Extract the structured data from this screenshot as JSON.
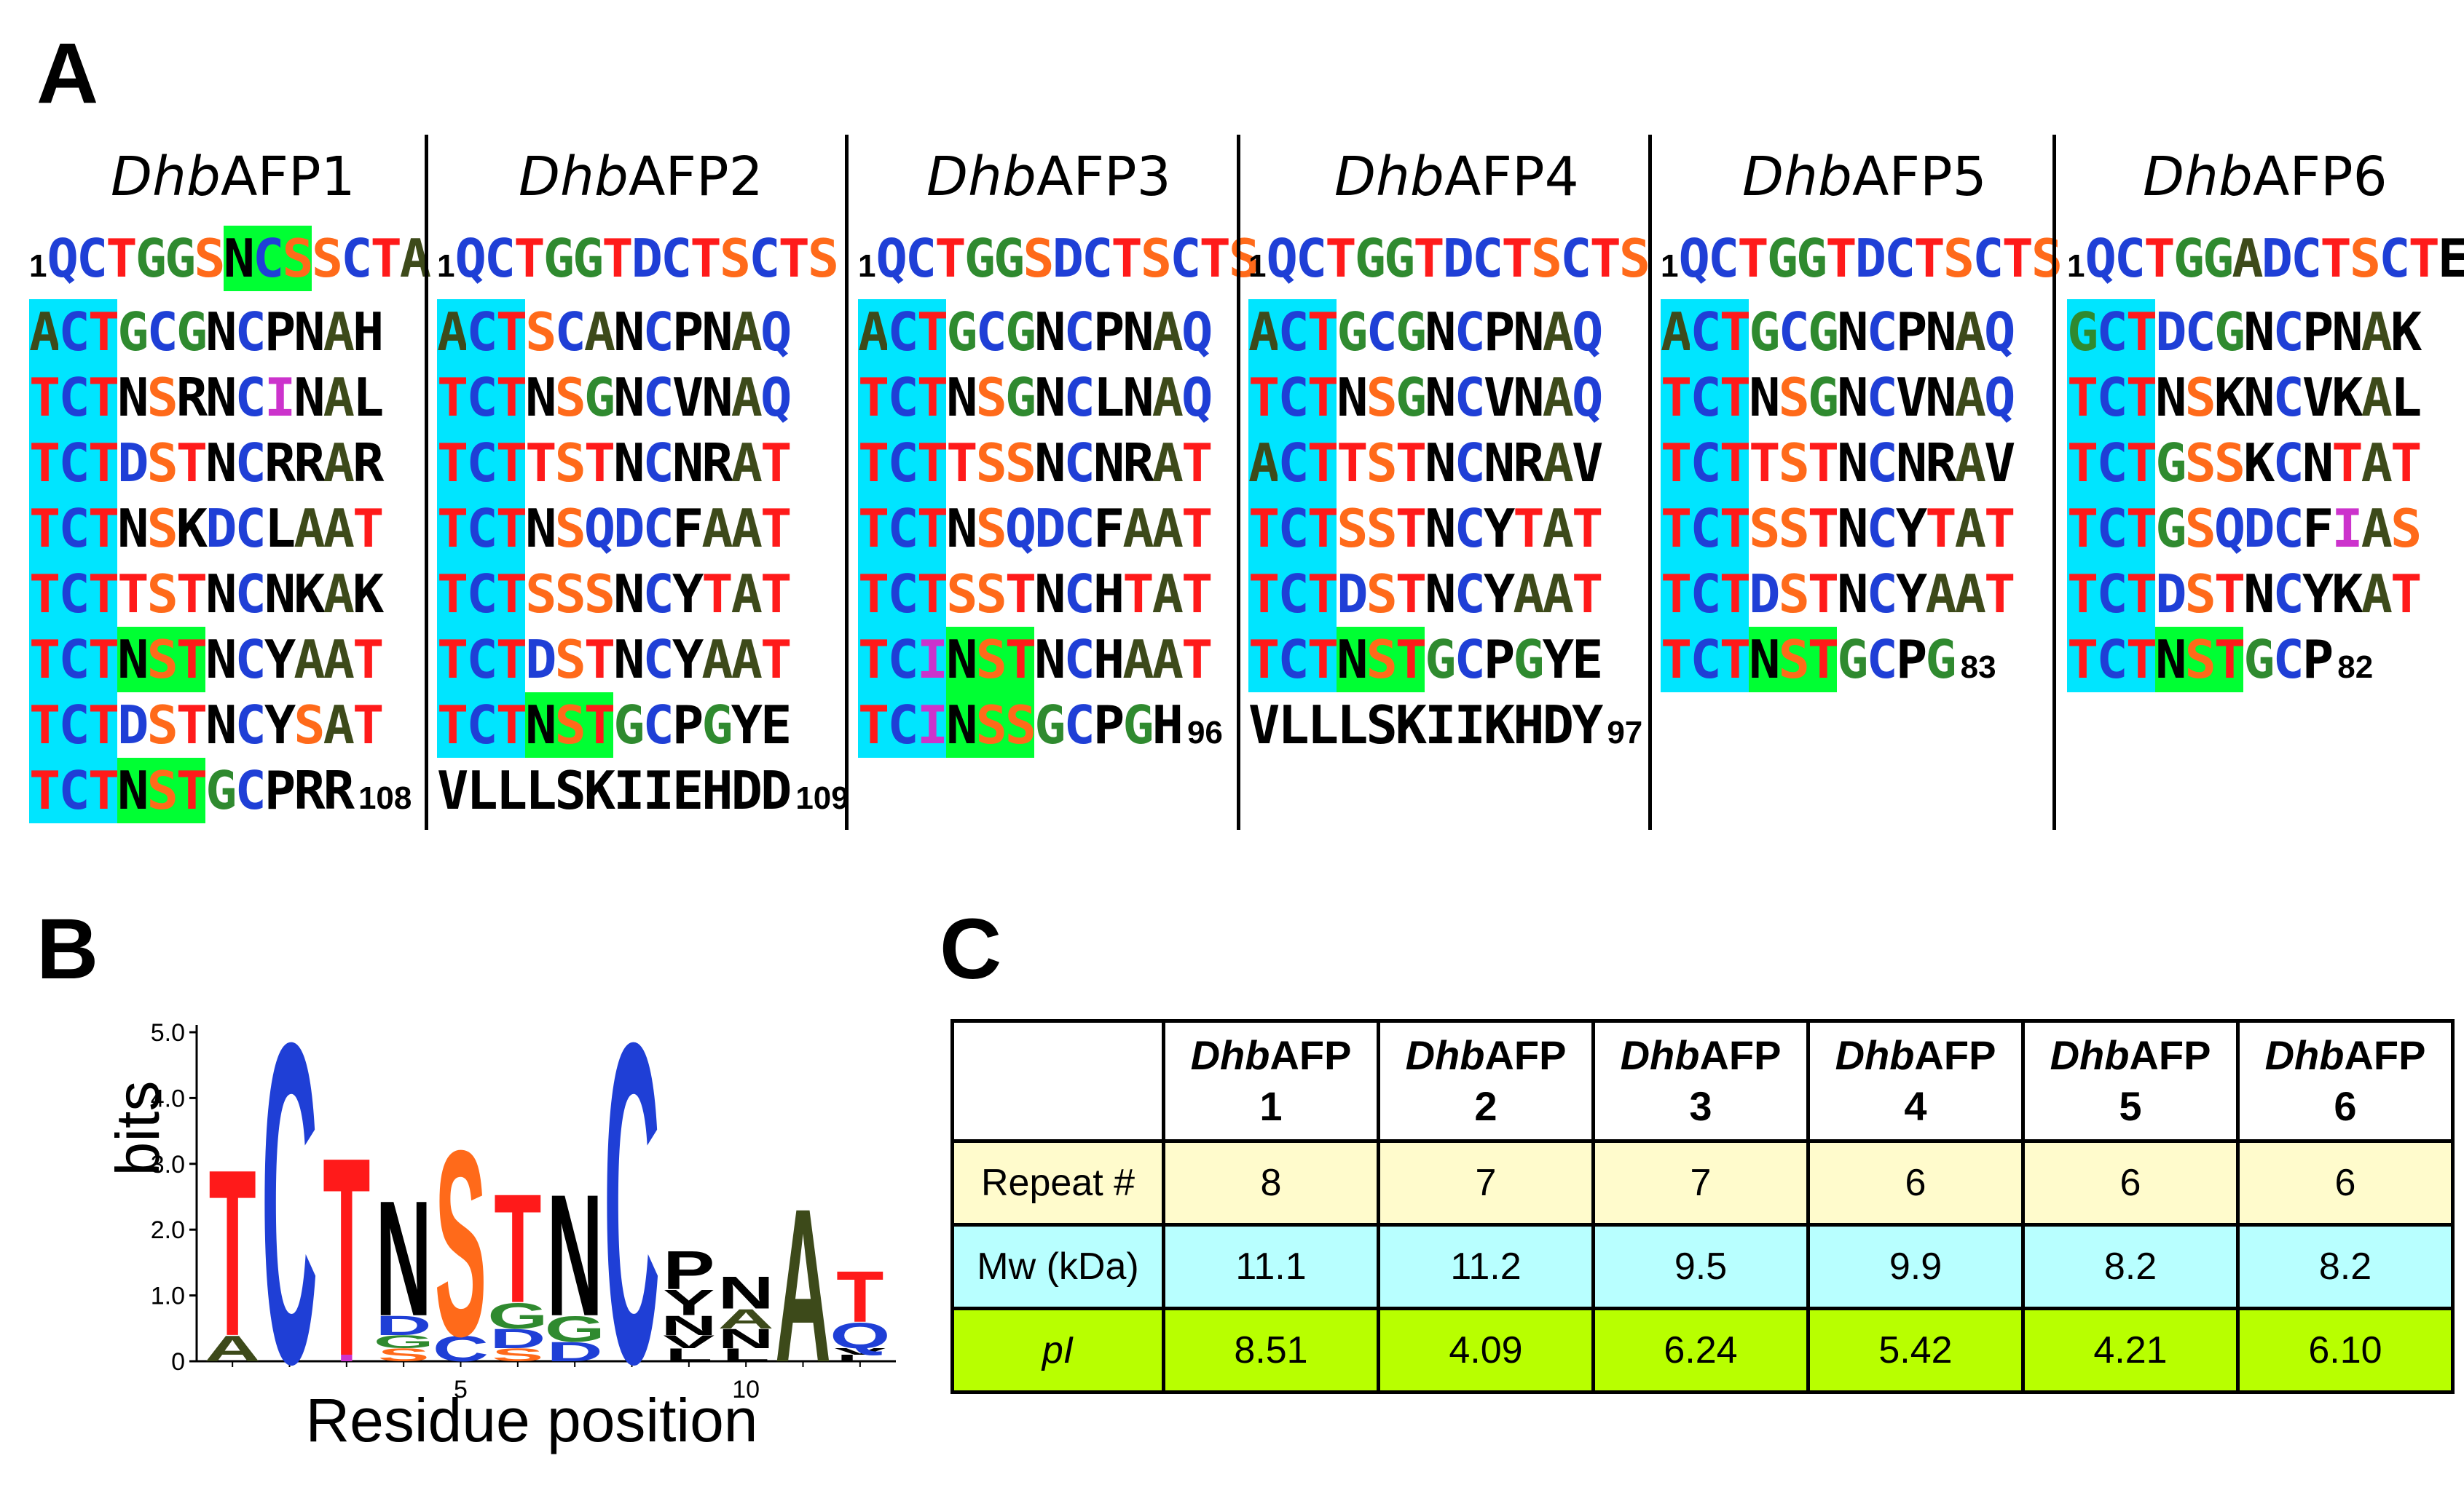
{
  "panels": {
    "a": "A",
    "b": "B",
    "c": "C"
  },
  "colors": {
    "T": "#ff1a1a",
    "C": "#1f3fd6",
    "N": "#000000",
    "S": "#ff6a1a",
    "G": "#2f8a2f",
    "D": "#1f3fd6",
    "A": "#3d4a1a",
    "Q": "#1f3fd6",
    "highlight_cyan": "#00e5ff",
    "highlight_green": "#00ff33",
    "I": "#cc33cc"
  },
  "sequences": [
    {
      "title_italic": "Dhb",
      "title_rest": "AFP1",
      "lines": [
        {
          "lead": "1",
          "text": "QCTGGSNCSSCTA"
        },
        {
          "text": "ACTGCGNCPNAH"
        },
        {
          "text": "TCTNSRNCINAL"
        },
        {
          "text": "TCTDSTNCRRAR"
        },
        {
          "text": "TCTNSKDCLAAT"
        },
        {
          "text": "TCTTSTNCNKAK"
        },
        {
          "text": "TCTNSTNCYAAT"
        },
        {
          "text": "TCTDSTNCYSAT"
        },
        {
          "text": "TCTNSTGCPRR",
          "end": "108"
        }
      ]
    },
    {
      "title_italic": "Dhb",
      "title_rest": "AFP2",
      "lines": [
        {
          "lead": "1",
          "text": "QCTGGTDCTSCTS"
        },
        {
          "text": "ACTSCANCPNAQ"
        },
        {
          "text": "TCTNSGNCVNAQ"
        },
        {
          "text": "TCTTSTNCNRAT"
        },
        {
          "text": "TCTNSQDCFAAT"
        },
        {
          "text": "TCTSSSNCYTAT"
        },
        {
          "text": "TCTDSTNCYAAT"
        },
        {
          "text": "TCTNSTGCPGYE"
        },
        {
          "text": "VLLLSKIIEHDD",
          "end": "109"
        }
      ]
    },
    {
      "title_italic": "Dhb",
      "title_rest": "AFP3",
      "lines": [
        {
          "lead": "1",
          "text": "QCTGGSDCTSCTS"
        },
        {
          "text": "ACTGCGNCPNAQ"
        },
        {
          "text": "TCTNSGNCLNAQ"
        },
        {
          "text": "TCTTSSNCNRAT"
        },
        {
          "text": "TCTNSQDCFAAT"
        },
        {
          "text": "TCTSSTNCHTAT"
        },
        {
          "text": "TCINSTNCHAAT"
        },
        {
          "text": "TCINSSGCPGH",
          "end": "96"
        }
      ]
    },
    {
      "title_italic": "Dhb",
      "title_rest": "AFP4",
      "lines": [
        {
          "lead": "1",
          "text": "QCTGGTDCTSCTS"
        },
        {
          "text": "ACTGCGNCPNAQ"
        },
        {
          "text": "TCTNSGNCVNAQ"
        },
        {
          "text": "ACTTSTNCNRAV"
        },
        {
          "text": "TCTSSTNCYTAT"
        },
        {
          "text": "TCTDSTNCYAAT"
        },
        {
          "text": "TCTNSTGCPGYE"
        },
        {
          "text": "VLLLSKIIKHDY",
          "end": "97"
        }
      ]
    },
    {
      "title_italic": "Dhb",
      "title_rest": "AFP5",
      "lines": [
        {
          "lead": "1",
          "text": "QCTGGTDCTSCTS"
        },
        {
          "text": "ACTGCGNCPNAQ"
        },
        {
          "text": "TCTNSGNCVNAQ"
        },
        {
          "text": "TCTTSTNCNRAV"
        },
        {
          "text": "TCTSSTNCYTAT"
        },
        {
          "text": "TCTDSTNCYAAT"
        },
        {
          "text": "TCTNSTGCPG",
          "end": "83"
        }
      ]
    },
    {
      "title_italic": "Dhb",
      "title_rest": "AFP6",
      "lines": [
        {
          "lead": "1",
          "text": "QCTGGADCTSCTE"
        },
        {
          "text": "GCTDCGNCPNAK"
        },
        {
          "text": "TCTNSKNCVKAL"
        },
        {
          "text": "TCTGSSKCNTAT"
        },
        {
          "text": "TCTGSQDCFIAS"
        },
        {
          "text": "TCTDSTNCYKAT"
        },
        {
          "text": "TCTNSTGCP",
          "end": "82"
        }
      ]
    }
  ],
  "logo": {
    "ylabel": "bits",
    "xlabel": "Residue position",
    "yticks": [
      "0",
      "1.0",
      "2.0",
      "3.0",
      "4.0",
      "5.0"
    ],
    "xticks": [
      "5",
      "10"
    ],
    "ymax": 5.0,
    "positions": [
      {
        "pos": 1,
        "letters": [
          {
            "l": "A",
            "h": 0.4
          },
          {
            "l": "T",
            "h": 2.6
          }
        ]
      },
      {
        "pos": 2,
        "letters": [
          {
            "l": "C",
            "h": 5.0
          }
        ]
      },
      {
        "pos": 3,
        "letters": [
          {
            "l": "I",
            "h": 0.1
          },
          {
            "l": "T",
            "h": 3.1
          }
        ]
      },
      {
        "pos": 4,
        "letters": [
          {
            "l": "S",
            "h": 0.2
          },
          {
            "l": "G",
            "h": 0.2
          },
          {
            "l": "D",
            "h": 0.3
          },
          {
            "l": "N",
            "h": 1.8
          }
        ]
      },
      {
        "pos": 5,
        "letters": [
          {
            "l": "C",
            "h": 0.4
          },
          {
            "l": "S",
            "h": 2.9
          }
        ]
      },
      {
        "pos": 6,
        "letters": [
          {
            "l": "S",
            "h": 0.2
          },
          {
            "l": "D",
            "h": 0.3
          },
          {
            "l": "G",
            "h": 0.4
          },
          {
            "l": "T",
            "h": 1.7
          }
        ]
      },
      {
        "pos": 7,
        "letters": [
          {
            "l": "D",
            "h": 0.3
          },
          {
            "l": "G",
            "h": 0.4
          },
          {
            "l": "N",
            "h": 1.9
          }
        ]
      },
      {
        "pos": 8,
        "letters": [
          {
            "l": "C",
            "h": 5.0
          }
        ]
      },
      {
        "pos": 9,
        "letters": [
          {
            "l": "L",
            "h": 0.2
          },
          {
            "l": "V",
            "h": 0.2
          },
          {
            "l": "N",
            "h": 0.3
          },
          {
            "l": "Y",
            "h": 0.4
          },
          {
            "l": "P",
            "h": 0.6
          }
        ]
      },
      {
        "pos": 10,
        "letters": [
          {
            "l": "L",
            "h": 0.2
          },
          {
            "l": "N",
            "h": 0.3
          },
          {
            "l": "A",
            "h": 0.3
          },
          {
            "l": "N",
            "h": 0.5
          }
        ]
      },
      {
        "pos": 11,
        "letters": [
          {
            "l": "A",
            "h": 2.4
          }
        ]
      },
      {
        "pos": 12,
        "letters": [
          {
            "l": "L",
            "h": 0.1
          },
          {
            "l": "V",
            "h": 0.1
          },
          {
            "l": "Q",
            "h": 0.4
          },
          {
            "l": "T",
            "h": 0.8
          }
        ]
      }
    ]
  },
  "table": {
    "headers": [
      {
        "italic": "Dhb",
        "rest": "AFP",
        "num": "1"
      },
      {
        "italic": "Dhb",
        "rest": "AFP",
        "num": "2"
      },
      {
        "italic": "Dhb",
        "rest": "AFP",
        "num": "3"
      },
      {
        "italic": "Dhb",
        "rest": "AFP",
        "num": "4"
      },
      {
        "italic": "Dhb",
        "rest": "AFP",
        "num": "5"
      },
      {
        "italic": "Dhb",
        "rest": "AFP",
        "num": "6"
      }
    ],
    "rows": [
      {
        "label": "Repeat #",
        "values": [
          "8",
          "7",
          "7",
          "6",
          "6",
          "6"
        ]
      },
      {
        "label": "Mw (kDa)",
        "values": [
          "11.1",
          "11.2",
          "9.5",
          "9.9",
          "8.2",
          "8.2"
        ]
      },
      {
        "label": "pI",
        "values": [
          "8.51",
          "4.09",
          "6.24",
          "5.42",
          "4.21",
          "6.10"
        ]
      }
    ]
  }
}
